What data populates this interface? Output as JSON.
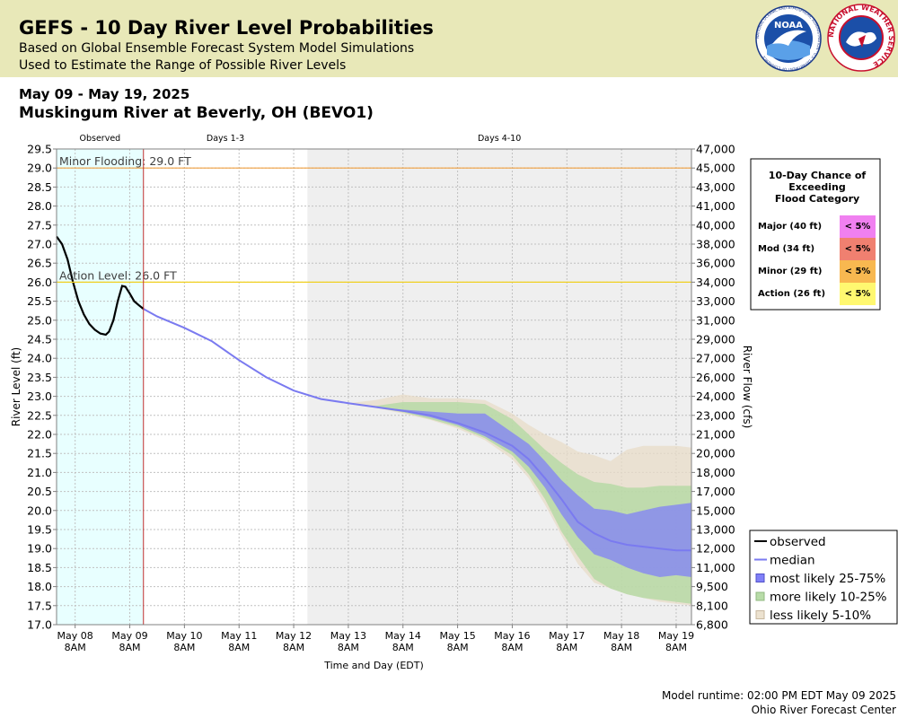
{
  "header": {
    "title": "GEFS - 10 Day River Level Probabilities",
    "subtitle1": "Based on Global Ensemble Forecast System Model Simulations",
    "subtitle2": "Used to Estimate the Range of Possible River Levels",
    "noaa_logo_text": "NOAA",
    "noaa_ring_text": "NATIONAL OCEANIC AND ATMOSPHERIC ADMINISTRATION · U.S. DEPARTMENT OF COMMERCE",
    "nws_ring_text": "NATIONAL WEATHER SERVICE"
  },
  "date_range": "May 09 - May 19, 2025",
  "station": "Muskingum River at Beverly, OH (BEVO1)",
  "footer": {
    "runtime": "Model runtime: 02:00 PM EDT May 09 2025",
    "center": "Ohio River Forecast Center"
  },
  "chart_data": {
    "type": "area",
    "xlabel": "Time and Day (EDT)",
    "ylabel": "River Level (ft)",
    "ylabel_right": "River Flow (cfs)",
    "ylim": [
      17.0,
      29.5
    ],
    "xlim_days": [
      7.66,
      19.28
    ],
    "y_ticks": [
      "17.0",
      "17.5",
      "18.0",
      "18.5",
      "19.0",
      "19.5",
      "20.0",
      "20.5",
      "21.0",
      "21.5",
      "22.0",
      "22.5",
      "23.0",
      "23.5",
      "24.0",
      "24.5",
      "25.0",
      "25.5",
      "26.0",
      "26.5",
      "27.0",
      "27.5",
      "28.0",
      "28.5",
      "29.0",
      "29.5"
    ],
    "right_ticks": [
      {
        "level": 17.0,
        "label": "6,800"
      },
      {
        "level": 17.5,
        "label": "8,100"
      },
      {
        "level": 18.0,
        "label": "9,500"
      },
      {
        "level": 18.5,
        "label": "11,000"
      },
      {
        "level": 19.0,
        "label": "12,000"
      },
      {
        "level": 19.5,
        "label": "13,000"
      },
      {
        "level": 20.0,
        "label": "15,000"
      },
      {
        "level": 20.5,
        "label": "17,000"
      },
      {
        "level": 21.0,
        "label": "18,000"
      },
      {
        "level": 21.5,
        "label": "20,000"
      },
      {
        "level": 22.0,
        "label": "21,000"
      },
      {
        "level": 22.5,
        "label": "23,000"
      },
      {
        "level": 23.0,
        "label": "24,000"
      },
      {
        "level": 23.5,
        "label": "26,000"
      },
      {
        "level": 24.0,
        "label": "27,000"
      },
      {
        "level": 24.5,
        "label": "29,000"
      },
      {
        "level": 25.0,
        "label": "31,000"
      },
      {
        "level": 25.5,
        "label": "33,000"
      },
      {
        "level": 26.0,
        "label": "34,000"
      },
      {
        "level": 26.5,
        "label": "36,000"
      },
      {
        "level": 27.0,
        "label": "38,000"
      },
      {
        "level": 27.5,
        "label": "40,000"
      },
      {
        "level": 28.0,
        "label": "41,000"
      },
      {
        "level": 28.5,
        "label": "43,000"
      },
      {
        "level": 29.0,
        "label": "45,000"
      },
      {
        "level": 29.5,
        "label": "47,000"
      }
    ],
    "x_ticks": [
      {
        "day": 8,
        "label": "May 08",
        "sub": "8AM"
      },
      {
        "day": 9,
        "label": "May 09",
        "sub": "8AM"
      },
      {
        "day": 10,
        "label": "May 10",
        "sub": "8AM"
      },
      {
        "day": 11,
        "label": "May 11",
        "sub": "8AM"
      },
      {
        "day": 12,
        "label": "May 12",
        "sub": "8AM"
      },
      {
        "day": 13,
        "label": "May 13",
        "sub": "8AM"
      },
      {
        "day": 14,
        "label": "May 14",
        "sub": "8AM"
      },
      {
        "day": 15,
        "label": "May 15",
        "sub": "8AM"
      },
      {
        "day": 16,
        "label": "May 16",
        "sub": "8AM"
      },
      {
        "day": 17,
        "label": "May 17",
        "sub": "8AM"
      },
      {
        "day": 18,
        "label": "May 18",
        "sub": "8AM"
      },
      {
        "day": 19,
        "label": "May 19",
        "sub": "8AM"
      }
    ],
    "regions": [
      {
        "label": "Observed",
        "start": 7.66,
        "end": 9.25,
        "color": "#e8ffff"
      },
      {
        "label": "Days 1-3",
        "start": 9.25,
        "end": 12.25,
        "color": "#ffffff"
      },
      {
        "label": "Days 4-10",
        "start": 12.25,
        "end": 19.28,
        "color": "#efefef"
      }
    ],
    "forecast_start": 9.25,
    "thresholds": [
      {
        "label": "Minor Flooding: 29.0 FT",
        "value": 29.0,
        "color": "#f0a040"
      },
      {
        "label": "Action Level: 26.0 FT",
        "value": 26.0,
        "color": "#f0d020"
      }
    ],
    "observed": [
      [
        7.66,
        27.2
      ],
      [
        7.76,
        27.0
      ],
      [
        7.86,
        26.6
      ],
      [
        7.96,
        26.0
      ],
      [
        8.06,
        25.5
      ],
      [
        8.16,
        25.15
      ],
      [
        8.26,
        24.9
      ],
      [
        8.36,
        24.75
      ],
      [
        8.46,
        24.65
      ],
      [
        8.56,
        24.62
      ],
      [
        8.62,
        24.7
      ],
      [
        8.7,
        25.0
      ],
      [
        8.78,
        25.5
      ],
      [
        8.86,
        25.9
      ],
      [
        8.92,
        25.88
      ],
      [
        9.0,
        25.7
      ],
      [
        9.08,
        25.5
      ],
      [
        9.16,
        25.4
      ],
      [
        9.25,
        25.3
      ]
    ],
    "series": [
      {
        "name": "median",
        "color": "#7a7af0",
        "x": [
          9.25,
          9.5,
          10,
          10.5,
          11,
          11.5,
          12,
          12.5,
          13,
          13.5,
          14,
          14.5,
          15,
          15.5,
          16,
          16.3,
          16.6,
          16.9,
          17.2,
          17.5,
          17.8,
          18.1,
          18.4,
          18.7,
          19,
          19.28
        ],
        "values": [
          25.3,
          25.1,
          24.8,
          24.45,
          23.95,
          23.5,
          23.15,
          22.93,
          22.82,
          22.72,
          22.62,
          22.5,
          22.3,
          22.05,
          21.7,
          21.35,
          20.85,
          20.3,
          19.7,
          19.4,
          19.2,
          19.1,
          19.05,
          19.0,
          18.95,
          18.95
        ]
      },
      {
        "name": "most likely 25-75%",
        "color": "#8080f8",
        "x": [
          13.5,
          14,
          14.5,
          15,
          15.5,
          16,
          16.3,
          16.6,
          16.9,
          17.2,
          17.5,
          17.8,
          18.1,
          18.4,
          18.7,
          19,
          19.28
        ],
        "low": [
          22.72,
          22.6,
          22.45,
          22.25,
          21.95,
          21.55,
          21.15,
          20.6,
          19.9,
          19.3,
          18.85,
          18.7,
          18.5,
          18.35,
          18.25,
          18.3,
          18.25
        ],
        "high": [
          22.72,
          22.65,
          22.6,
          22.55,
          22.55,
          22.05,
          21.75,
          21.3,
          20.8,
          20.4,
          20.05,
          20.0,
          19.9,
          20.0,
          20.1,
          20.15,
          20.2
        ]
      },
      {
        "name": "more likely 10-25%",
        "color": "#b0d8a0",
        "x": [
          13.0,
          13.5,
          14,
          14.5,
          15,
          15.5,
          16,
          16.3,
          16.6,
          16.9,
          17.2,
          17.5,
          17.8,
          18.1,
          18.4,
          18.7,
          19,
          19.28
        ],
        "low": [
          22.82,
          22.7,
          22.58,
          22.4,
          22.2,
          21.9,
          21.45,
          20.95,
          20.3,
          19.45,
          18.8,
          18.2,
          17.95,
          17.8,
          17.7,
          17.65,
          17.6,
          17.55
        ],
        "high": [
          22.82,
          22.75,
          22.85,
          22.85,
          22.85,
          22.8,
          22.4,
          22.0,
          21.6,
          21.25,
          20.95,
          20.75,
          20.7,
          20.6,
          20.6,
          20.65,
          20.65,
          20.65
        ]
      },
      {
        "name": "less likely 5-10%",
        "color": "#e8dcc8",
        "x": [
          12.5,
          13,
          13.5,
          14,
          14.5,
          15,
          15.5,
          16,
          16.3,
          16.6,
          16.9,
          17.2,
          17.5,
          17.8,
          18.1,
          18.4,
          18.7,
          19,
          19.28
        ],
        "low": [
          22.93,
          22.82,
          22.7,
          22.55,
          22.38,
          22.15,
          21.85,
          21.35,
          20.85,
          20.15,
          19.35,
          18.6,
          18.1,
          17.95,
          17.8,
          17.7,
          17.6,
          17.55,
          17.5
        ],
        "high": [
          22.93,
          22.82,
          22.9,
          23.05,
          22.95,
          22.95,
          22.9,
          22.55,
          22.25,
          22.0,
          21.8,
          21.55,
          21.45,
          21.3,
          21.6,
          21.7,
          21.7,
          21.7,
          21.65
        ]
      }
    ],
    "legend": [
      {
        "label": "observed",
        "kind": "line",
        "color": "#000000"
      },
      {
        "label": "median",
        "kind": "line",
        "color": "#7a7af0"
      },
      {
        "label": "most likely 25-75%",
        "kind": "box",
        "color": "#8080f8",
        "border": "#5050c8"
      },
      {
        "label": "more likely 10-25%",
        "kind": "box",
        "color": "#b8dca8",
        "border": "#90b880"
      },
      {
        "label": "less likely 5-10%",
        "kind": "box",
        "color": "#ece2d0",
        "border": "#c8b8a0"
      }
    ],
    "exceed_table": {
      "title": [
        "10-Day Chance of",
        "Exceeding",
        "Flood Category"
      ],
      "rows": [
        {
          "label": "Major (40 ft)",
          "value": "< 5%",
          "color": "#f080f0"
        },
        {
          "label": "Mod (34 ft)",
          "value": "< 5%",
          "color": "#f08070"
        },
        {
          "label": "Minor (29 ft)",
          "value": "< 5%",
          "color": "#f8b850"
        },
        {
          "label": "Action (26 ft)",
          "value": "< 5%",
          "color": "#fff870"
        }
      ]
    }
  }
}
